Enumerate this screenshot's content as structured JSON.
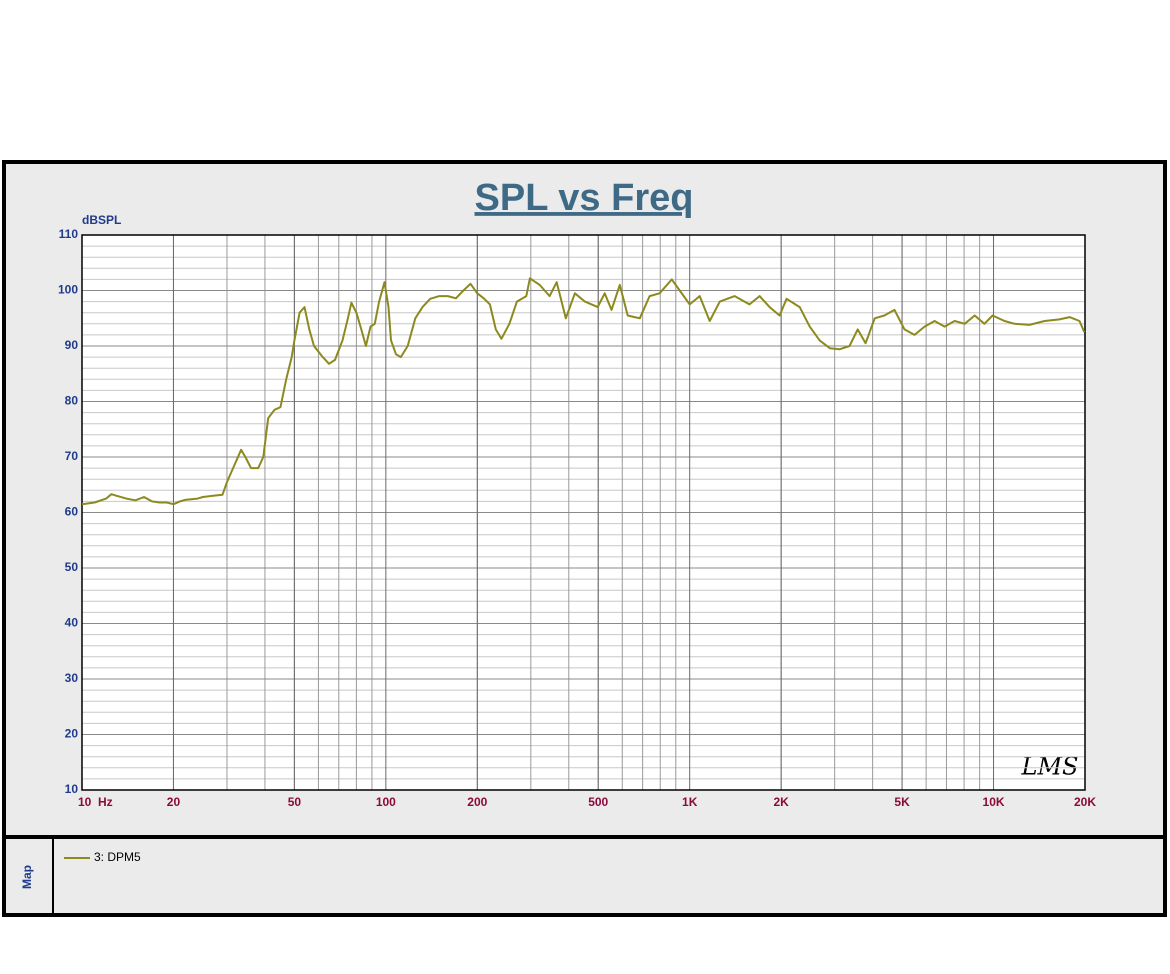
{
  "chart_data": {
    "type": "line",
    "title": "SPL vs Freq",
    "y_label": "dBSPL",
    "watermark": "LMS",
    "legend_panel_label": "Map",
    "log_x": true,
    "grid": true,
    "xlim": [
      10,
      20000
    ],
    "ylim": [
      10,
      110
    ],
    "xticks": [
      {
        "value": 10,
        "label": "10  Hz"
      },
      20,
      50,
      100,
      200,
      500,
      {
        "value": 1000,
        "label": "1K"
      },
      {
        "value": 2000,
        "label": "2K"
      },
      {
        "value": 5000,
        "label": "5K"
      },
      {
        "value": 10000,
        "label": "10K"
      },
      {
        "value": 20000,
        "label": "20K"
      }
    ],
    "yticks": [
      10,
      20,
      30,
      40,
      50,
      60,
      70,
      80,
      90,
      100,
      110
    ],
    "x": [
      10,
      11,
      12,
      12.5,
      13,
      14,
      15,
      16,
      17,
      18,
      19,
      20,
      21,
      22,
      24,
      25,
      27,
      29,
      30,
      32,
      33.4,
      34.5,
      36,
      38,
      39.5,
      41,
      43,
      45,
      47,
      49,
      50,
      52,
      54,
      56,
      58,
      62,
      65,
      68,
      72,
      75,
      77,
      80,
      83,
      86,
      89,
      92,
      95,
      99,
      102,
      104,
      108,
      112,
      118,
      125,
      132,
      140,
      150,
      160,
      170,
      180,
      190,
      200,
      210,
      220,
      230,
      240,
      255,
      270,
      290,
      298,
      321,
      346,
      365,
      391,
      419,
      452,
      498,
      525,
      553,
      589,
      625,
      685,
      738,
      796,
      873,
      927,
      1000,
      1079,
      1164,
      1256,
      1406,
      1574,
      1699,
      1833,
      1977,
      2084,
      2301,
      2483,
      2679,
      2891,
      3112,
      3357,
      3573,
      3793,
      4064,
      4375,
      4721,
      5093,
      5495,
      5929,
      6397,
      6902,
      7447,
      8035,
      8670,
      9333,
      9931,
      10865,
      11722,
      13122,
      14723,
      16482,
      17783,
      19187,
      19900
    ],
    "series": [
      {
        "name": "3: DPM5",
        "color": "#8c8a1e",
        "values": [
          61.5,
          61.8,
          62.5,
          63.3,
          63,
          62.5,
          62.2,
          62.8,
          62,
          61.8,
          61.8,
          61.5,
          62,
          62.3,
          62.5,
          62.8,
          63,
          63.2,
          65.5,
          69,
          71.3,
          70,
          68,
          68,
          70,
          77,
          78.5,
          79,
          84,
          88,
          91,
          96,
          97,
          93,
          90,
          88,
          86.8,
          87.5,
          91,
          95,
          97.8,
          96,
          93,
          90,
          93.5,
          94,
          98,
          101.5,
          97,
          91,
          88.5,
          88,
          90,
          95,
          97,
          98.5,
          99,
          99,
          98.6,
          100,
          101.2,
          99.5,
          98.6,
          97.5,
          93,
          91.3,
          94,
          98,
          99,
          102.2,
          101,
          99,
          101.5,
          95,
          99.5,
          98,
          97,
          99.5,
          96.5,
          101,
          95.5,
          95,
          99,
          99.5,
          102,
          100,
          97.5,
          99,
          94.5,
          98,
          99,
          97.5,
          99,
          97,
          95.5,
          98.5,
          97,
          93.5,
          91,
          89.6,
          89.4,
          90,
          93,
          90.5,
          95,
          95.5,
          96.5,
          93,
          92,
          93.5,
          94.5,
          93.5,
          94.5,
          94,
          95.5,
          94,
          95.5,
          94.5,
          94,
          93.8,
          94.5,
          94.8,
          95.2,
          94.5,
          92.5
        ]
      }
    ]
  }
}
